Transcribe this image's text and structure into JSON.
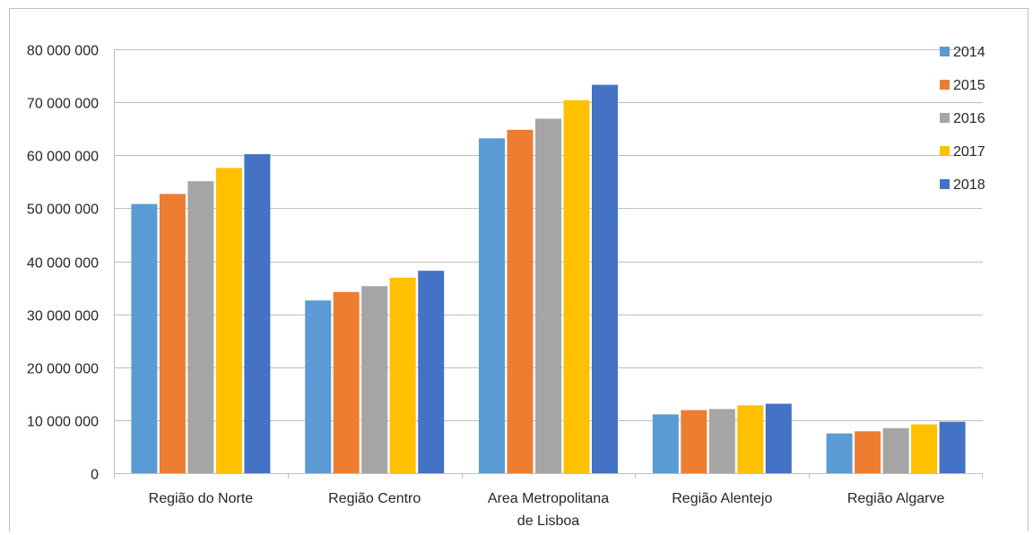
{
  "chart_data": {
    "type": "bar",
    "title": "",
    "xlabel": "",
    "ylabel": "",
    "ylim": [
      0,
      80000000
    ],
    "yticks": [
      0,
      10000000,
      20000000,
      30000000,
      40000000,
      50000000,
      60000000,
      70000000,
      80000000
    ],
    "ytick_labels": [
      "0",
      "10 000 000",
      "20 000 000",
      "30 000 000",
      "40 000 000",
      "50 000 000",
      "60 000 000",
      "70 000 000",
      "80 000 000"
    ],
    "grid": true,
    "legend_position": "top-right",
    "categories": [
      [
        "Região do Norte"
      ],
      [
        "Região Centro"
      ],
      [
        "Area Metropolitana",
        "de Lisboa"
      ],
      [
        "Região Alentejo"
      ],
      [
        "Região Algarve"
      ]
    ],
    "series": [
      {
        "name": "2014",
        "color": "#5b9bd5",
        "values": [
          50800000,
          32600000,
          63200000,
          11100000,
          7500000
        ]
      },
      {
        "name": "2015",
        "color": "#ed7d31",
        "values": [
          52700000,
          34200000,
          64800000,
          11900000,
          7900000
        ]
      },
      {
        "name": "2016",
        "color": "#a5a5a5",
        "values": [
          55100000,
          35300000,
          66900000,
          12100000,
          8500000
        ]
      },
      {
        "name": "2017",
        "color": "#ffc000",
        "values": [
          57600000,
          36900000,
          70400000,
          12800000,
          9200000
        ]
      },
      {
        "name": "2018",
        "color": "#4472c4",
        "values": [
          60200000,
          38200000,
          73300000,
          13100000,
          9700000
        ]
      }
    ]
  }
}
